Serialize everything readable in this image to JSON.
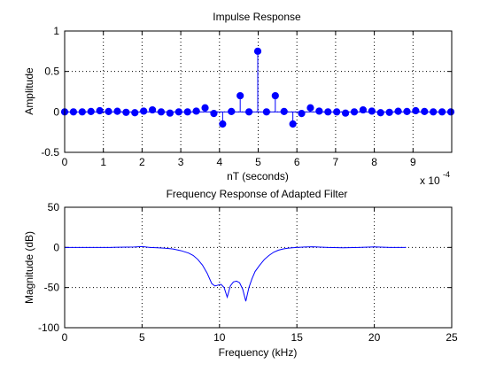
{
  "chart_data": [
    {
      "type": "stem",
      "title": "Impulse Response",
      "xlabel": "nT (seconds)",
      "ylabel": "Amplitude",
      "x_multiplier": "x 10",
      "x_multiplier_exp": "-4",
      "xlim": [
        0,
        10
      ],
      "ylim": [
        -0.5,
        1
      ],
      "xticks": [
        0,
        1,
        2,
        3,
        4,
        5,
        6,
        7,
        8,
        9
      ],
      "yticks": [
        -0.5,
        0,
        0.5,
        1
      ],
      "ytick_labels": [
        "-0.5",
        "0",
        "0.5",
        "1"
      ],
      "grid": true,
      "color": "#0000ff",
      "x": [
        0,
        0.227,
        0.454,
        0.68,
        0.907,
        1.134,
        1.361,
        1.587,
        1.814,
        2.041,
        2.268,
        2.494,
        2.721,
        2.948,
        3.175,
        3.401,
        3.628,
        3.855,
        4.082,
        4.308,
        4.535,
        4.762,
        4.989,
        5.215,
        5.442,
        5.669,
        5.896,
        6.122,
        6.349,
        6.576,
        6.803,
        7.029,
        7.256,
        7.483,
        7.71,
        7.937,
        8.163,
        8.39,
        8.617,
        8.844,
        9.07,
        9.297,
        9.524,
        9.751,
        9.977
      ],
      "y": [
        0.0,
        0.0,
        0.0,
        0.005,
        0.015,
        0.005,
        0.008,
        -0.005,
        -0.01,
        0.01,
        0.025,
        0.0,
        -0.015,
        0.0,
        0.0,
        0.01,
        0.05,
        -0.02,
        -0.15,
        0.005,
        0.2,
        0.0,
        0.75,
        0.0,
        0.2,
        0.005,
        -0.15,
        -0.02,
        0.05,
        0.01,
        0.0,
        0.0,
        -0.015,
        0.0,
        0.025,
        0.01,
        -0.01,
        -0.005,
        0.008,
        0.005,
        0.015,
        0.005,
        0.0,
        0.0,
        0.0
      ]
    },
    {
      "type": "line",
      "title": "Frequency Response of Adapted Filter",
      "xlabel": "Frequency (kHz)",
      "ylabel": "Magnitude (dB)",
      "xlim": [
        0,
        25
      ],
      "ylim": [
        -100,
        50
      ],
      "xticks": [
        0,
        5,
        10,
        15,
        20,
        25
      ],
      "yticks": [
        -100,
        -50,
        0,
        50
      ],
      "grid": true,
      "color": "#0000ff",
      "x": [
        0.0,
        1.0,
        2.0,
        3.0,
        4.0,
        4.5,
        5.0,
        5.5,
        6.0,
        6.5,
        7.0,
        7.5,
        8.0,
        8.3,
        8.6,
        8.9,
        9.2,
        9.5,
        9.7,
        9.9,
        10.1,
        10.3,
        10.5,
        10.7,
        10.9,
        11.1,
        11.3,
        11.5,
        11.7,
        11.9,
        12.1,
        12.3,
        12.6,
        12.9,
        13.2,
        13.5,
        13.8,
        14.1,
        14.4,
        14.7,
        15.0,
        15.5,
        16.0,
        17.0,
        18.0,
        19.0,
        20.0,
        21.0,
        22.05
      ],
      "y": [
        0.0,
        0.0,
        0.0,
        0.0,
        0.3,
        0.5,
        1.0,
        0.0,
        -0.5,
        -1.0,
        -2.0,
        -4.0,
        -7.0,
        -10.0,
        -15.0,
        -22.0,
        -32.0,
        -45.0,
        -48.0,
        -47.0,
        -46.0,
        -50.0,
        -62.0,
        -48.0,
        -43.0,
        -42.0,
        -44.0,
        -52.0,
        -67.0,
        -50.0,
        -39.0,
        -30.0,
        -22.0,
        -15.0,
        -10.0,
        -6.0,
        -3.5,
        -2.0,
        -1.0,
        -0.5,
        0.0,
        0.5,
        0.8,
        0.0,
        -0.5,
        0.0,
        0.6,
        0.0,
        0.0
      ]
    }
  ]
}
